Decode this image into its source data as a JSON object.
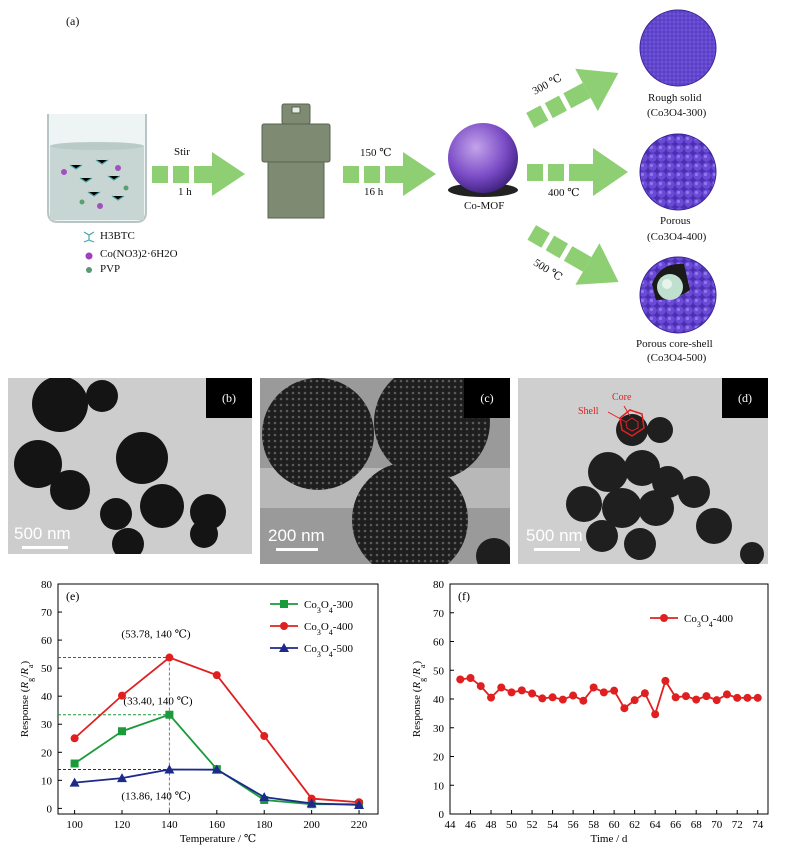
{
  "scheme": {
    "panel_label": "(a)",
    "step1": {
      "top": "Stir",
      "bottom": "1 h"
    },
    "step2": {
      "top": "150 ℃",
      "bottom": "16 h"
    },
    "mof_label": "Co-MOF",
    "branch_upper": "300 ℃",
    "branch_middle": "400 ℃",
    "branch_lower": "500 ℃",
    "products": [
      {
        "name": "Rough solid",
        "formula": "(Co3O4-300)"
      },
      {
        "name": "Porous",
        "formula": "(Co3O4-400)"
      },
      {
        "name": "Porous core-shell",
        "formula": "(Co3O4-500)"
      }
    ],
    "legend": [
      "H3BTC",
      "Co(NO3)2·6H2O",
      "PVP"
    ]
  },
  "tem_images": [
    {
      "label": "(b)",
      "scale": "500 nm"
    },
    {
      "label": "(c)",
      "scale": "200 nm"
    },
    {
      "label": "(d)",
      "scale": "500 nm",
      "core": "Core",
      "shell": "Shell"
    }
  ],
  "chart_data": [
    {
      "type": "line",
      "panel": "(e)",
      "xlabel": "Temperature / ℃",
      "ylabel": "Response (Rg/Ra)",
      "x": [
        100,
        120,
        140,
        160,
        180,
        200,
        220
      ],
      "xlim": [
        93,
        228
      ],
      "ylim": [
        -2,
        80
      ],
      "xticks": [
        100,
        120,
        140,
        160,
        180,
        200,
        220
      ],
      "yticks": [
        0,
        10,
        20,
        30,
        40,
        50,
        60,
        70,
        80
      ],
      "legend_position": "top-right",
      "series": [
        {
          "name": "Co3O4-300",
          "color": "#1a9a3a",
          "marker": "square",
          "values": [
            16.0,
            27.5,
            33.4,
            14.0,
            3.0,
            1.5,
            1.5
          ]
        },
        {
          "name": "Co3O4-400",
          "color": "#e02020",
          "marker": "circle",
          "values": [
            25.0,
            40.2,
            53.78,
            47.5,
            25.8,
            3.5,
            2.2
          ]
        },
        {
          "name": "Co3O4-500",
          "color": "#1c2a8a",
          "marker": "triangle",
          "values": [
            9.2,
            10.8,
            13.86,
            13.8,
            4.0,
            1.8,
            1.2
          ]
        }
      ],
      "annotations": [
        {
          "text": "(53.78, 140 ℃)",
          "x": 140,
          "y": 53.78,
          "color": "#555555"
        },
        {
          "text": "(33.40, 140 ℃)",
          "x": 140,
          "y": 33.4,
          "color": "#1a9a3a"
        },
        {
          "text": "(13.86, 140 ℃)",
          "x": 140,
          "y": 13.86,
          "color": "#1c2a8a"
        }
      ]
    },
    {
      "type": "line",
      "panel": "(f)",
      "xlabel": "Time / d",
      "ylabel": "Response (Rg/Ra)",
      "x": [
        45,
        46,
        47,
        48,
        49,
        50,
        51,
        52,
        53,
        54,
        55,
        56,
        57,
        58,
        59,
        60,
        61,
        62,
        63,
        64,
        65,
        66,
        67,
        68,
        69,
        70,
        71,
        72,
        73,
        74
      ],
      "xlim": [
        44,
        75
      ],
      "ylim": [
        0,
        80
      ],
      "xticks": [
        44,
        46,
        48,
        50,
        52,
        54,
        56,
        58,
        60,
        62,
        64,
        66,
        68,
        70,
        72,
        74
      ],
      "yticks": [
        0,
        10,
        20,
        30,
        40,
        50,
        60,
        70,
        80
      ],
      "legend_position": "top-right",
      "series": [
        {
          "name": "Co3O4-400",
          "color": "#e02020",
          "marker": "circle",
          "values": [
            46.8,
            47.3,
            44.5,
            40.5,
            44.0,
            42.3,
            43.0,
            41.9,
            40.2,
            40.6,
            39.8,
            41.2,
            39.4,
            44.0,
            42.3,
            42.9,
            36.8,
            39.6,
            42.0,
            34.7,
            46.3,
            40.6,
            41.0,
            39.8,
            41.0,
            39.6,
            41.6,
            40.4,
            40.4,
            40.4
          ]
        }
      ]
    }
  ]
}
